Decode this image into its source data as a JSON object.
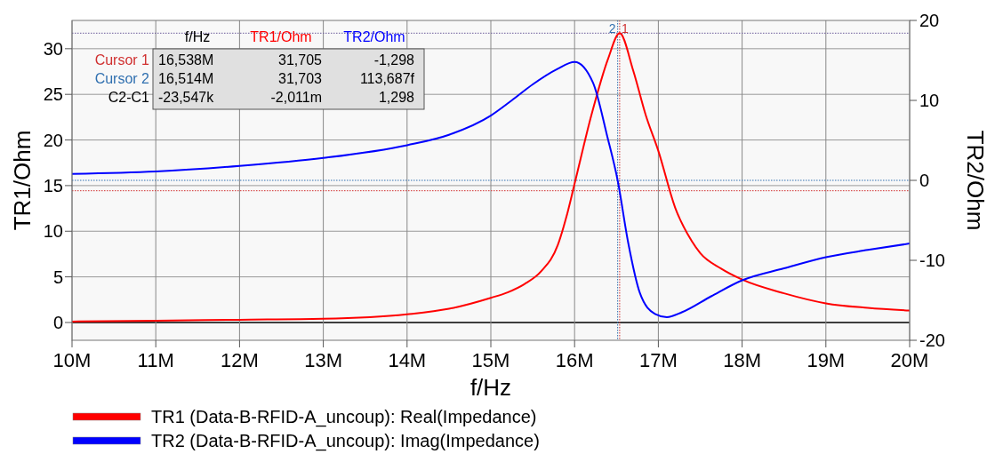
{
  "chart_data": {
    "type": "line",
    "xlabel": "f/Hz",
    "ylabel": "TR1/Ohm",
    "y2label": "TR2/Ohm",
    "xlim": [
      10000000,
      20000000
    ],
    "xticks": [
      {
        "value": 10000000,
        "label": "10M"
      },
      {
        "value": 11000000,
        "label": "11M"
      },
      {
        "value": 12000000,
        "label": "12M"
      },
      {
        "value": 13000000,
        "label": "13M"
      },
      {
        "value": 14000000,
        "label": "14M"
      },
      {
        "value": 15000000,
        "label": "15M"
      },
      {
        "value": 16000000,
        "label": "16M"
      },
      {
        "value": 17000000,
        "label": "17M"
      },
      {
        "value": 18000000,
        "label": "18M"
      },
      {
        "value": 19000000,
        "label": "19M"
      },
      {
        "value": 20000000,
        "label": "20M"
      }
    ],
    "ylim": [
      -1.95,
      33.1
    ],
    "yticks": [
      0,
      5,
      10,
      15,
      20,
      25,
      30
    ],
    "y2lim": [
      -20,
      20
    ],
    "y2ticks": [
      -20,
      -10,
      0,
      10,
      20
    ],
    "grid": true,
    "legend": "bottom",
    "line_style": "solid",
    "series": [
      {
        "name": "TR1 (Data-B-RFID-A_uncoup): Real(Impedance)",
        "color": "#ff0000",
        "x": [
          10000000,
          11000000,
          12000000,
          13000000,
          14000000,
          14500000,
          15000000,
          15200000,
          15400000,
          15600000,
          15800000,
          15900000,
          16000000,
          16200000,
          16400000,
          16538000,
          16700000,
          16850000,
          17000000,
          17200000,
          17400000,
          17500000,
          17750000,
          18000000,
          18500000,
          19000000,
          19500000,
          20000000
        ],
        "values": [
          0.1,
          0.2,
          0.3,
          0.4,
          0.9,
          1.5,
          2.7,
          3.3,
          4.2,
          5.6,
          8.5,
          11.5,
          15.2,
          22.7,
          28.9,
          31.705,
          27.6,
          22.7,
          18.8,
          12.6,
          8.9,
          7.6,
          5.9,
          4.7,
          3.2,
          2.1,
          1.6,
          1.3
        ]
      },
      {
        "name": "TR2 (Data-B-RFID-A_uncoup): Imag(Impedance)",
        "color": "#0000ff",
        "axis": "y2",
        "x": [
          10000000,
          11000000,
          12000000,
          13000000,
          14000000,
          14500000,
          15000000,
          15250000,
          15500000,
          15790000,
          16000000,
          16220000,
          16390000,
          16514000,
          16640000,
          16780000,
          16960000,
          17100000,
          17280000,
          17630000,
          18000000,
          18500000,
          19000000,
          19500000,
          20000000
        ],
        "values": [
          0.8,
          1.1,
          1.8,
          2.8,
          4.4,
          5.7,
          8.1,
          10.0,
          12.0,
          13.9,
          14.8,
          12.2,
          5.5,
          0,
          -7.8,
          -14.1,
          -16.7,
          -17.1,
          -16.5,
          -14.5,
          -12.5,
          -11,
          -9.6,
          -8.7,
          -7.9
        ]
      }
    ],
    "ref_lines": [
      {
        "axis": "x",
        "value": 16538000,
        "color": "#d03030",
        "line_style": "dotted"
      },
      {
        "axis": "x",
        "value": 16514000,
        "color": "#3070b0",
        "line_style": "dotted"
      },
      {
        "axis": "y",
        "value": 31.705,
        "color": "#6a5a9a",
        "line_style": "dotted"
      },
      {
        "axis": "y2",
        "value": -1.298,
        "color": "#d03030",
        "line_style": "dotted"
      },
      {
        "axis": "y2",
        "value": 0,
        "color": "#3070b0",
        "line_style": "dotted"
      }
    ],
    "annotations": [
      {
        "text": "1",
        "x": 16538000,
        "y": 33.1
      },
      {
        "text": "2",
        "x": 16514000,
        "y": 33.1
      },
      "f/Hz",
      "TR1/Ohm",
      "TR2/Ohm",
      "Cursor 1",
      "16,538M",
      "31,705",
      "-1,298",
      "Cursor 2",
      "16,514M",
      "31,703",
      "113,687f",
      "C2-C1",
      "-23,547k",
      "-2,011m",
      "1,298"
    ]
  }
}
